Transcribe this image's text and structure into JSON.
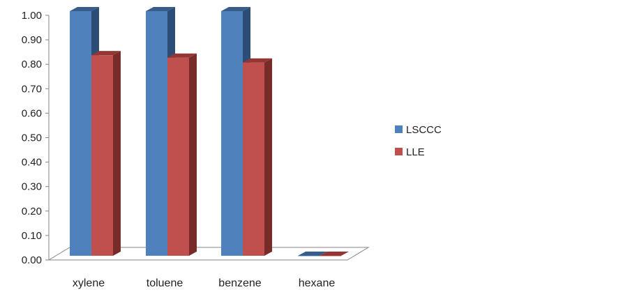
{
  "chart_data": {
    "type": "bar",
    "style": "3d-clustered-column",
    "title": "",
    "xlabel": "",
    "ylabel": "",
    "categories": [
      "xylene",
      "toluene",
      "benzene",
      "hexane"
    ],
    "series": [
      {
        "name": "LSCCC",
        "values": [
          1.0,
          1.0,
          1.0,
          0.0
        ],
        "color": "#4f81bd",
        "side_color": "#2c4d75",
        "top_color": "#385d8a"
      },
      {
        "name": "LLE",
        "values": [
          0.82,
          0.81,
          0.79,
          0.0
        ],
        "color": "#c0504d",
        "side_color": "#772c2a",
        "top_color": "#943634"
      }
    ],
    "ylim": [
      0,
      1
    ],
    "yticks": [
      "0.00",
      "0.10",
      "0.20",
      "0.30",
      "0.40",
      "0.50",
      "0.60",
      "0.70",
      "0.80",
      "0.90",
      "1.00"
    ],
    "grid": false,
    "legend_position": "right"
  }
}
